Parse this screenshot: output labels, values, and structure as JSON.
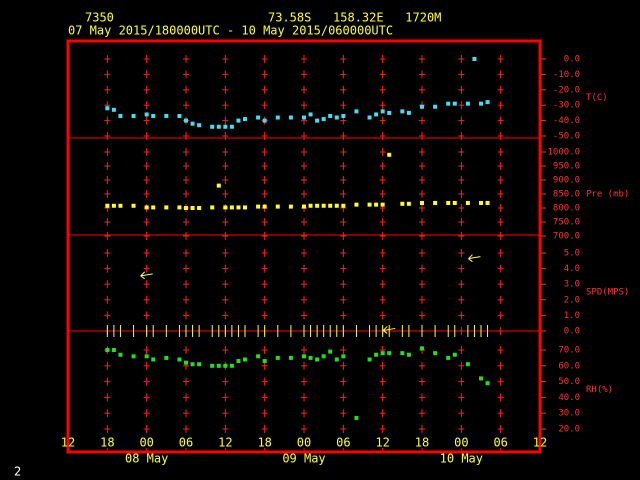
{
  "chart_data": {
    "type": "scatter",
    "station": "7350",
    "location": "73.58S   158.32E   1720M",
    "period": "07 May 2015/180000UTC - 10 May 2015/060000UTC",
    "page_number": "2",
    "xlim": [
      "2015-05-07 12:00",
      "2015-05-10 12:00"
    ],
    "xticks": [
      {
        "value": "2015-05-07 12:00",
        "label": "12"
      },
      {
        "value": "2015-05-07 18:00",
        "label": "18"
      },
      {
        "value": "2015-05-08 00:00",
        "label": "00"
      },
      {
        "value": "2015-05-08 06:00",
        "label": "06"
      },
      {
        "value": "2015-05-08 12:00",
        "label": "12"
      },
      {
        "value": "2015-05-08 18:00",
        "label": "18"
      },
      {
        "value": "2015-05-09 00:00",
        "label": "00"
      },
      {
        "value": "2015-05-09 06:00",
        "label": "06"
      },
      {
        "value": "2015-05-09 12:00",
        "label": "12"
      },
      {
        "value": "2015-05-09 18:00",
        "label": "18"
      },
      {
        "value": "2015-05-10 00:00",
        "label": "00"
      },
      {
        "value": "2015-05-10 06:00",
        "label": "06"
      },
      {
        "value": "2015-05-10 12:00",
        "label": "12"
      }
    ],
    "date_labels": [
      {
        "value": "2015-05-08 00:00",
        "label": "08 May"
      },
      {
        "value": "2015-05-09 00:00",
        "label": "09 May"
      },
      {
        "value": "2015-05-10 00:00",
        "label": "10 May"
      }
    ],
    "x": [
      "2015-05-07 18:00",
      "2015-05-07 19:00",
      "2015-05-07 20:00",
      "2015-05-07 22:00",
      "2015-05-08 00:00",
      "2015-05-08 01:00",
      "2015-05-08 03:00",
      "2015-05-08 05:00",
      "2015-05-08 06:00",
      "2015-05-08 07:00",
      "2015-05-08 08:00",
      "2015-05-08 10:00",
      "2015-05-08 11:00",
      "2015-05-08 12:00",
      "2015-05-08 13:00",
      "2015-05-08 14:00",
      "2015-05-08 15:00",
      "2015-05-08 17:00",
      "2015-05-08 18:00",
      "2015-05-08 20:00",
      "2015-05-08 22:00",
      "2015-05-09 00:00",
      "2015-05-09 01:00",
      "2015-05-09 02:00",
      "2015-05-09 03:00",
      "2015-05-09 04:00",
      "2015-05-09 05:00",
      "2015-05-09 06:00",
      "2015-05-09 08:00",
      "2015-05-09 10:00",
      "2015-05-09 11:00",
      "2015-05-09 12:00",
      "2015-05-09 13:00",
      "2015-05-09 15:00",
      "2015-05-09 16:00",
      "2015-05-09 18:00",
      "2015-05-09 20:00",
      "2015-05-09 22:00",
      "2015-05-09 23:00",
      "2015-05-10 01:00",
      "2015-05-10 02:00",
      "2015-05-10 03:00",
      "2015-05-10 04:00"
    ],
    "panels": [
      {
        "label": "T(C)",
        "ylim": [
          -50,
          0
        ],
        "yticks": [
          {
            "value": 0,
            "label": "0.0"
          },
          {
            "value": -10,
            "label": "-10.0"
          },
          {
            "value": -20,
            "label": "-20.0"
          },
          {
            "value": -30,
            "label": "-30.0"
          },
          {
            "value": -40,
            "label": "-40.0"
          },
          {
            "value": -50,
            "label": "-50.0"
          }
        ],
        "color": "#40e0f0",
        "values": [
          -32,
          -33,
          -37,
          -37,
          -36,
          -37,
          -37,
          -37,
          -40,
          -42,
          -43,
          -44,
          -44,
          -44,
          -44,
          -40,
          -39,
          -38,
          -40,
          -38,
          -38,
          -38,
          -36,
          -40,
          -39,
          -37,
          -38,
          -37,
          -34,
          -38,
          -36,
          -34,
          -35,
          -34,
          -35,
          -31,
          -31,
          -29,
          -29,
          -29,
          0,
          -29,
          -28
        ]
      },
      {
        "label": "Pre (mb)",
        "ylim": [
          700,
          1000
        ],
        "yticks": [
          {
            "value": 1000,
            "label": "1000.0"
          },
          {
            "value": 950,
            "label": "950.0"
          },
          {
            "value": 900,
            "label": "900.0"
          },
          {
            "value": 850,
            "label": "850.0"
          },
          {
            "value": 800,
            "label": "800.0"
          },
          {
            "value": 750,
            "label": "750.0"
          },
          {
            "value": 700,
            "label": "700.0"
          }
        ],
        "color": "#ffff20",
        "values": [
          808,
          808,
          808,
          808,
          802,
          802,
          802,
          802,
          800,
          800,
          800,
          802,
          880,
          802,
          802,
          802,
          802,
          805,
          805,
          805,
          805,
          805,
          808,
          808,
          808,
          808,
          808,
          808,
          812,
          812,
          812,
          812,
          990,
          815,
          815,
          818,
          818,
          818,
          818,
          818,
          null,
          818,
          818
        ]
      },
      {
        "label": "SPD(MPS)",
        "ylim": [
          0,
          5
        ],
        "yticks": [
          {
            "value": 5,
            "label": "5.0"
          },
          {
            "value": 4,
            "label": "4.0"
          },
          {
            "value": 3,
            "label": "3.0"
          },
          {
            "value": 2,
            "label": "2.0"
          },
          {
            "value": 1,
            "label": "1.0"
          },
          {
            "value": 0,
            "label": "0.0"
          }
        ],
        "color": "#ffff60",
        "wind_x": [
          "2015-05-08 00:00",
          "2015-05-09 13:00",
          "2015-05-10 02:00"
        ],
        "values": [
          3.6,
          0.1,
          4.7
        ]
      },
      {
        "label": "RH(%)",
        "ylim": [
          20,
          70
        ],
        "yticks": [
          {
            "value": 70,
            "label": "70.0"
          },
          {
            "value": 60,
            "label": "60.0"
          },
          {
            "value": 50,
            "label": "50.0"
          },
          {
            "value": 40,
            "label": "40.0"
          },
          {
            "value": 30,
            "label": "30.0"
          },
          {
            "value": 20,
            "label": "20.0"
          }
        ],
        "color": "#20e020",
        "values": [
          70,
          70,
          67,
          66,
          66,
          64,
          65,
          64,
          62,
          61,
          61,
          60,
          60,
          60,
          60,
          63,
          64,
          66,
          63,
          65,
          65,
          66,
          65,
          64,
          66,
          69,
          64,
          66,
          27,
          64,
          67,
          68,
          68,
          68,
          67,
          71,
          68,
          65,
          67,
          61,
          null,
          52,
          49
        ]
      }
    ]
  }
}
